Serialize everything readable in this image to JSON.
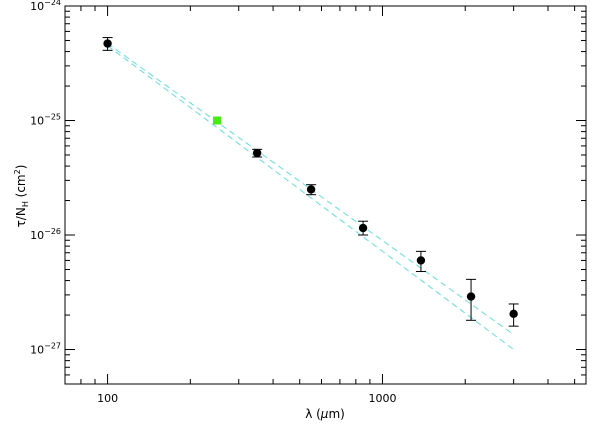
{
  "chart_data": {
    "type": "scatter",
    "title": "",
    "xlabel": {
      "prefix": "λ (",
      "unit_italic": "μ",
      "suffix": "m)"
    },
    "ylabel": {
      "base": "τ/N",
      "sub": "H",
      "mid": " (cm",
      "sup": "2",
      "end": ")"
    },
    "xscale": "log",
    "yscale": "log",
    "xlim": [
      70,
      5500
    ],
    "ylim": [
      5e-28,
      1e-24
    ],
    "x_ticks": [
      {
        "value": 100,
        "label": "100"
      },
      {
        "value": 1000,
        "label": "1000"
      }
    ],
    "y_ticks": [
      {
        "value": 1e-27,
        "base": "10",
        "exp": "−27"
      },
      {
        "value": 1e-26,
        "base": "10",
        "exp": "−26"
      },
      {
        "value": 1e-25,
        "base": "10",
        "exp": "−25"
      },
      {
        "value": 1e-24,
        "base": "10",
        "exp": "−24"
      }
    ],
    "grid": false,
    "legend": "none",
    "series": [
      {
        "marker": "circle",
        "color": "#000000",
        "points": [
          {
            "x": 100,
            "y": 4.7e-25,
            "ylo": 4.1e-25,
            "yhi": 5.3e-25
          },
          {
            "x": 350,
            "y": 5.2e-26,
            "ylo": 4.8e-26,
            "yhi": 5.6e-26
          },
          {
            "x": 550,
            "y": 2.5e-26,
            "ylo": 2.25e-26,
            "yhi": 2.75e-26
          },
          {
            "x": 850,
            "y": 1.15e-26,
            "ylo": 1e-26,
            "yhi": 1.32e-26
          },
          {
            "x": 1380,
            "y": 6e-27,
            "ylo": 4.8e-27,
            "yhi": 7.2e-27
          },
          {
            "x": 2100,
            "y": 2.9e-27,
            "ylo": 1.8e-27,
            "yhi": 4.1e-27
          },
          {
            "x": 3000,
            "y": 2.05e-27,
            "ylo": 1.6e-27,
            "yhi": 2.5e-27
          }
        ]
      },
      {
        "marker": "square",
        "color": "#44ee11",
        "points": [
          {
            "x": 250,
            "y": 1e-25
          }
        ]
      }
    ],
    "fit_lines": [
      {
        "color": "#66dddd",
        "dash": "dashed",
        "x": [
          100,
          3000
        ],
        "y": [
          4.7e-25,
          1.35e-27
        ]
      },
      {
        "color": "#66dddd",
        "dash": "dashed",
        "x": [
          100,
          3000
        ],
        "y": [
          4.5e-25,
          1e-27
        ]
      }
    ]
  }
}
